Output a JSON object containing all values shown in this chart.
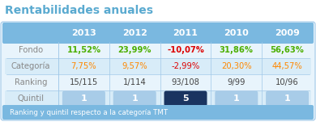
{
  "title": "Rentabilidades anuales",
  "years": [
    "2013",
    "2012",
    "2011",
    "2010",
    "2009"
  ],
  "rows": {
    "Fondo": [
      "11,52%",
      "23,99%",
      "-10,07%",
      "31,86%",
      "56,63%"
    ],
    "Categoria": [
      "7,75%",
      "9,57%",
      "-2,99%",
      "20,30%",
      "44,57%"
    ],
    "Ranking": [
      "15/115",
      "1/114",
      "93/108",
      "9/99",
      "10/96"
    ],
    "Quintil": [
      "1",
      "1",
      "5",
      "1",
      "1"
    ]
  },
  "fondo_colors": [
    "#4caf00",
    "#4caf00",
    "#dd0000",
    "#4caf00",
    "#4caf00"
  ],
  "categoria_colors": [
    "#ff8800",
    "#ff8800",
    "#dd0000",
    "#ff8800",
    "#ff8800"
  ],
  "ranking_color": "#444444",
  "row_label_color": "#888888",
  "header_bg": "#7ab8e0",
  "header_text": "#ffffff",
  "quintil_normal_bg": "#a8cce8",
  "quintil_dark_bg": "#1a3460",
  "quintil_text": "#ffffff",
  "footer_bg": "#7ab8e0",
  "footer_text": "#ffffff",
  "footer_note": "Ranking y quintil respecto a la categoría TMT",
  "table_bg": "#e8f4fc",
  "table_alt_bg": "#d8ecf8",
  "outer_bg": "#ffffff",
  "title_color": "#5aaad0",
  "dotted_color": "#a0c8e8",
  "border_color": "#a0c8e8"
}
